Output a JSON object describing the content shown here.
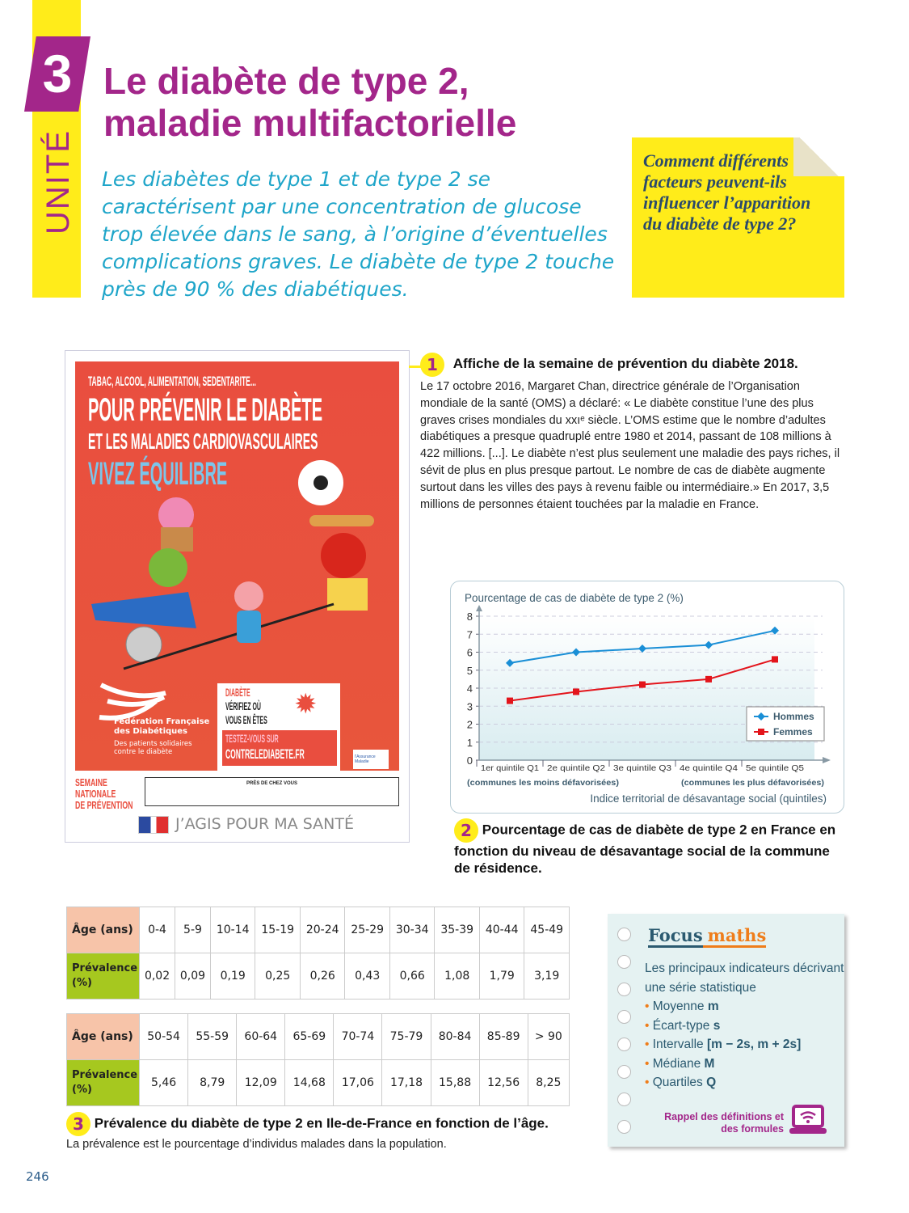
{
  "unit": {
    "number": "3",
    "label": "UNITÉ"
  },
  "title_lines": [
    "Le diabète de type 2,",
    "maladie multifactorielle"
  ],
  "intro": "Les diabètes de type 1 et de type 2 se caractérisent par une concentration de glucose trop élevée dans le sang, à l’origine d’éventuelles complications graves. Le diabète de type 2 touche près de 90 % des diabétiques.",
  "question": "Comment différents facteurs peuvent-ils influencer l’apparition du diabète de type 2?",
  "poster": {
    "line1": "TABAC, ALCOOL, ALIMENTATION, SEDENTARITE...",
    "line2": "POUR PRÉVENIR LE DIABÈTE",
    "line3": "ET LES MALADIES CARDIOVASCULAIRES",
    "line4": "VIVEZ ÉQUILIBRE",
    "federation": "Fédération Française des Diabétiques",
    "federation_sub": "Des patients solidaires contre le diabète",
    "box_red": "DIABÈTE",
    "box_l2": "VÉRIFIEZ OÙ",
    "box_l3": "VOUS EN ÊTES",
    "test": "TESTEZ-VOUS SUR",
    "site": "CONTRELEDIABETE.FR",
    "assurance": "l'Assurance Maladie",
    "semaine": [
      "SEMAINE",
      "NATIONALE",
      "DE PRÉVENTION"
    ],
    "pres": "PRÈS DE CHEZ VOUS",
    "slogan": "J’AGIS POUR MA SANTÉ"
  },
  "doc1": {
    "number": "1",
    "title": "Affiche de la semaine de prévention du diabète 2018.",
    "body": "Le 17 octobre 2016, Margaret Chan, directrice générale de l’Organisation mondiale de la santé (OMS) a déclaré: « Le diabète constitue l’une des plus graves crises mondiales du xxıᵉ siècle. L’OMS estime que le nombre d’adultes diabétiques a presque quadruplé entre 1980 et 2014, passant de 108 millions à 422 millions. [...]. Le diabète n’est plus seulement une maladie des pays riches, il sévit de plus en plus presque partout. Le nombre de cas de diabète augmente surtout dans les villes des pays à revenu faible ou intermédiaire.» En 2017, 3,5 millions de personnes étaient touchées par la maladie en France."
  },
  "chart_data": {
    "type": "line",
    "title": "Pourcentage de cas de diabète de type 2 (%)",
    "xlabel": "Indice territorial de désavantage social (quintiles)",
    "x_note_left": "(communes les moins défavorisées)",
    "x_note_right": "(communes les plus défavorisées)",
    "categories": [
      "1er quintile Q1",
      "2e quintile Q2",
      "3e quintile Q3",
      "4e quintile Q4",
      "5e quintile Q5"
    ],
    "yticks": [
      0,
      1,
      2,
      3,
      4,
      5,
      6,
      7,
      8
    ],
    "ylim": [
      0,
      8
    ],
    "grid": true,
    "legend": "bottom-right",
    "series": [
      {
        "name": "Hommes",
        "color": "#1a8fd6",
        "marker": "diamond",
        "values": [
          5.4,
          6.0,
          6.2,
          6.4,
          7.2
        ]
      },
      {
        "name": "Femmes",
        "color": "#e3141b",
        "marker": "square",
        "values": [
          3.3,
          3.8,
          4.2,
          4.5,
          5.6
        ]
      }
    ]
  },
  "doc2": {
    "number": "2",
    "caption": "Pourcentage de cas de diabète de type 2 en France en fonction du niveau de désavantage social de la commune de résidence."
  },
  "table1": {
    "age_header": "Âge (ans)",
    "prev_header": "Prévalence (%)",
    "ages": [
      "0-4",
      "5-9",
      "10-14",
      "15-19",
      "20-24",
      "25-29",
      "30-34",
      "35-39",
      "40-44",
      "45-49"
    ],
    "values": [
      "0,02",
      "0,09",
      "0,19",
      "0,25",
      "0,26",
      "0,43",
      "0,66",
      "1,08",
      "1,79",
      "3,19"
    ]
  },
  "table2": {
    "age_header": "Âge (ans)",
    "prev_header": "Prévalence (%)",
    "ages": [
      "50-54",
      "55-59",
      "60-64",
      "65-69",
      "70-74",
      "75-79",
      "80-84",
      "85-89",
      "> 90"
    ],
    "values": [
      "5,46",
      "8,79",
      "12,09",
      "14,68",
      "17,06",
      "17,18",
      "15,88",
      "12,56",
      "8,25"
    ]
  },
  "doc3": {
    "number": "3",
    "caption": "Prévalence du diabète de type 2 en Ile-de-France en fonction de l’âge.",
    "sub": "La prévalence est le pourcentage d’individus malades dans la population."
  },
  "focus": {
    "title_a": "Focus",
    "title_b": "maths",
    "intro": "Les principaux indicateurs décrivant une série statistique",
    "items": [
      {
        "label": "Moyenne",
        "sym": "m"
      },
      {
        "label": "Écart-type",
        "sym": "s"
      },
      {
        "label": "Intervalle",
        "sym": "[m − 2s, m + 2s]"
      },
      {
        "label": "Médiane",
        "sym": "M"
      },
      {
        "label": "Quartiles",
        "sym": "Q"
      }
    ],
    "link": "Rappel des définitions et des formules",
    "link_icon": "laptop-wifi-icon"
  },
  "page_number": "246",
  "colors": {
    "accent": "#a3268a",
    "yellow": "#ffec1a",
    "cyan": "#1ea5c9",
    "poster_red": "#e94e3f"
  }
}
